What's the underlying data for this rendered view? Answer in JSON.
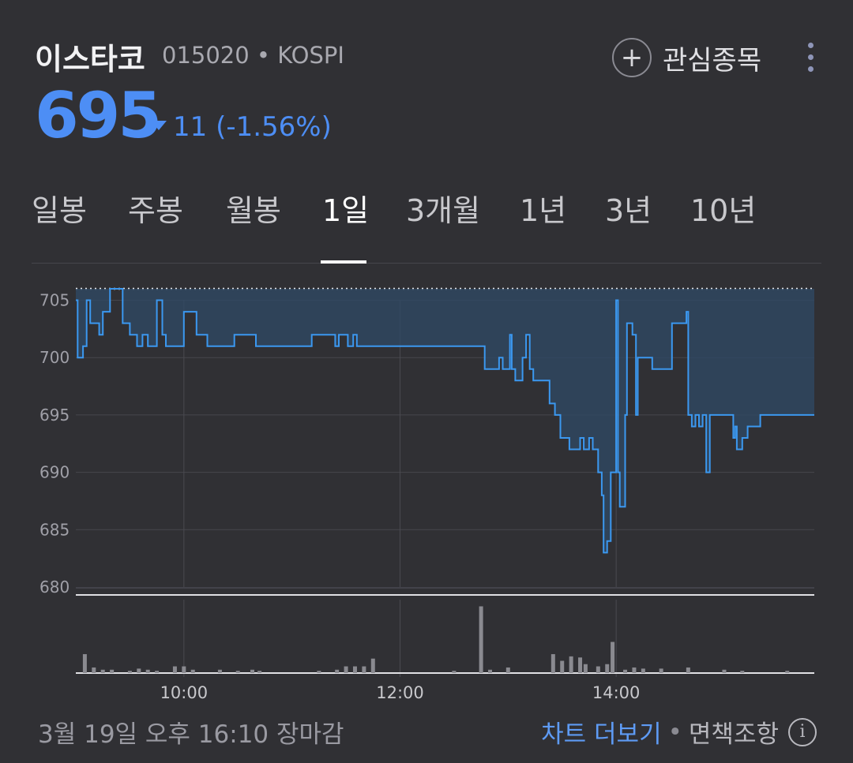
{
  "stock": {
    "name": "이스타코",
    "meta": "015020 • KOSPI",
    "price": "695",
    "change": "11 (-1.56%)",
    "direction": "down",
    "color_down": "#4d8ef5"
  },
  "watchlist": {
    "label": "관심종목",
    "icon": "plus-icon"
  },
  "menu": {
    "icon": "more-vertical-icon"
  },
  "tabs": [
    {
      "label": "일봉",
      "active": false
    },
    {
      "label": "주봉",
      "active": false
    },
    {
      "label": "월봉",
      "active": false
    },
    {
      "label": "1일",
      "active": true
    },
    {
      "label": "3개월",
      "active": false
    },
    {
      "label": "1년",
      "active": false
    },
    {
      "label": "3년",
      "active": false
    },
    {
      "label": "10년",
      "active": false
    }
  ],
  "chart_data": {
    "type": "line",
    "ylim": [
      680,
      706
    ],
    "y_ticks": [
      "705",
      "700",
      "695",
      "690",
      "685",
      "680"
    ],
    "x_ticks": [
      "10:00",
      "12:00",
      "14:00"
    ],
    "x_range": [
      "09:00",
      "15:50"
    ],
    "reference_line": 706,
    "series": [
      {
        "values": [
          [
            "09:00",
            705
          ],
          [
            "09:01",
            700
          ],
          [
            "09:04",
            701
          ],
          [
            "09:06",
            705
          ],
          [
            "09:08",
            703
          ],
          [
            "09:13",
            702
          ],
          [
            "09:15",
            704
          ],
          [
            "09:19",
            706
          ],
          [
            "09:26",
            703
          ],
          [
            "09:30",
            702
          ],
          [
            "09:34",
            701
          ],
          [
            "09:37",
            702
          ],
          [
            "09:40",
            701
          ],
          [
            "09:45",
            705
          ],
          [
            "09:48",
            702
          ],
          [
            "09:50",
            701
          ],
          [
            "09:55",
            701
          ],
          [
            "10:00",
            704
          ],
          [
            "10:07",
            702
          ],
          [
            "10:13",
            701
          ],
          [
            "10:27",
            701
          ],
          [
            "10:28",
            702
          ],
          [
            "10:38",
            702
          ],
          [
            "10:40",
            701
          ],
          [
            "11:10",
            701
          ],
          [
            "11:11",
            702
          ],
          [
            "11:24",
            701
          ],
          [
            "11:26",
            702
          ],
          [
            "11:31",
            701
          ],
          [
            "11:34",
            702
          ],
          [
            "11:36",
            701
          ],
          [
            "11:45",
            701
          ],
          [
            "12:46",
            701
          ],
          [
            "12:47",
            699
          ],
          [
            "12:54",
            699
          ],
          [
            "12:55",
            700
          ],
          [
            "12:57",
            699
          ],
          [
            "13:00",
            699
          ],
          [
            "13:01",
            702
          ],
          [
            "13:02",
            699
          ],
          [
            "13:04",
            698
          ],
          [
            "13:08",
            700
          ],
          [
            "13:10",
            702
          ],
          [
            "13:12",
            699
          ],
          [
            "13:14",
            698
          ],
          [
            "13:18",
            698
          ],
          [
            "13:21",
            698
          ],
          [
            "13:23",
            696
          ],
          [
            "13:26",
            695
          ],
          [
            "13:29",
            693
          ],
          [
            "13:34",
            692
          ],
          [
            "13:40",
            693
          ],
          [
            "13:42",
            692
          ],
          [
            "13:45",
            693
          ],
          [
            "13:47",
            692
          ],
          [
            "13:50",
            690
          ],
          [
            "13:52",
            688
          ],
          [
            "13:53",
            683
          ],
          [
            "13:55",
            684
          ],
          [
            "13:57",
            690
          ],
          [
            "14:00",
            705
          ],
          [
            "14:01",
            690
          ],
          [
            "14:02",
            687
          ],
          [
            "14:05",
            695
          ],
          [
            "14:06",
            703
          ],
          [
            "14:09",
            702
          ],
          [
            "14:11",
            695
          ],
          [
            "14:12",
            700
          ],
          [
            "14:18",
            700
          ],
          [
            "14:20",
            699
          ],
          [
            "14:28",
            699
          ],
          [
            "14:31",
            703
          ],
          [
            "14:39",
            704
          ],
          [
            "14:40",
            695
          ],
          [
            "14:42",
            694
          ],
          [
            "14:44",
            695
          ],
          [
            "14:46",
            694
          ],
          [
            "14:48",
            695
          ],
          [
            "14:50",
            690
          ],
          [
            "14:52",
            695
          ],
          [
            "15:05",
            693
          ],
          [
            "15:06",
            694
          ],
          [
            "15:07",
            692
          ],
          [
            "15:10",
            693
          ],
          [
            "15:13",
            694
          ],
          [
            "15:20",
            695
          ],
          [
            "15:50",
            695
          ]
        ]
      }
    ],
    "volume": [
      [
        "09:05",
        17
      ],
      [
        "09:10",
        5
      ],
      [
        "09:15",
        3
      ],
      [
        "09:20",
        3
      ],
      [
        "09:30",
        2
      ],
      [
        "09:35",
        4
      ],
      [
        "09:40",
        3
      ],
      [
        "09:45",
        2
      ],
      [
        "09:55",
        6
      ],
      [
        "10:00",
        6
      ],
      [
        "10:05",
        3
      ],
      [
        "10:20",
        3
      ],
      [
        "10:30",
        2
      ],
      [
        "10:38",
        3
      ],
      [
        "10:42",
        2
      ],
      [
        "11:15",
        2
      ],
      [
        "11:25",
        3
      ],
      [
        "11:30",
        6
      ],
      [
        "11:35",
        6
      ],
      [
        "11:40",
        6
      ],
      [
        "11:45",
        13
      ],
      [
        "12:30",
        2
      ],
      [
        "12:45",
        60
      ],
      [
        "12:50",
        3
      ],
      [
        "13:00",
        5
      ],
      [
        "13:25",
        17
      ],
      [
        "13:30",
        11
      ],
      [
        "13:35",
        15
      ],
      [
        "13:40",
        14
      ],
      [
        "13:43",
        8
      ],
      [
        "13:50",
        6
      ],
      [
        "13:55",
        8
      ],
      [
        "13:58",
        28
      ],
      [
        "14:05",
        3
      ],
      [
        "14:10",
        5
      ],
      [
        "14:15",
        4
      ],
      [
        "14:25",
        4
      ],
      [
        "14:40",
        5
      ],
      [
        "15:00",
        3
      ],
      [
        "15:10",
        2
      ],
      [
        "15:35",
        2
      ]
    ]
  },
  "footer": {
    "date": "3월 19일 오후 16:10 장마감",
    "more_chart": "차트 더보기",
    "separator": "•",
    "disclaimer": "면책조항",
    "info_icon": "i"
  }
}
